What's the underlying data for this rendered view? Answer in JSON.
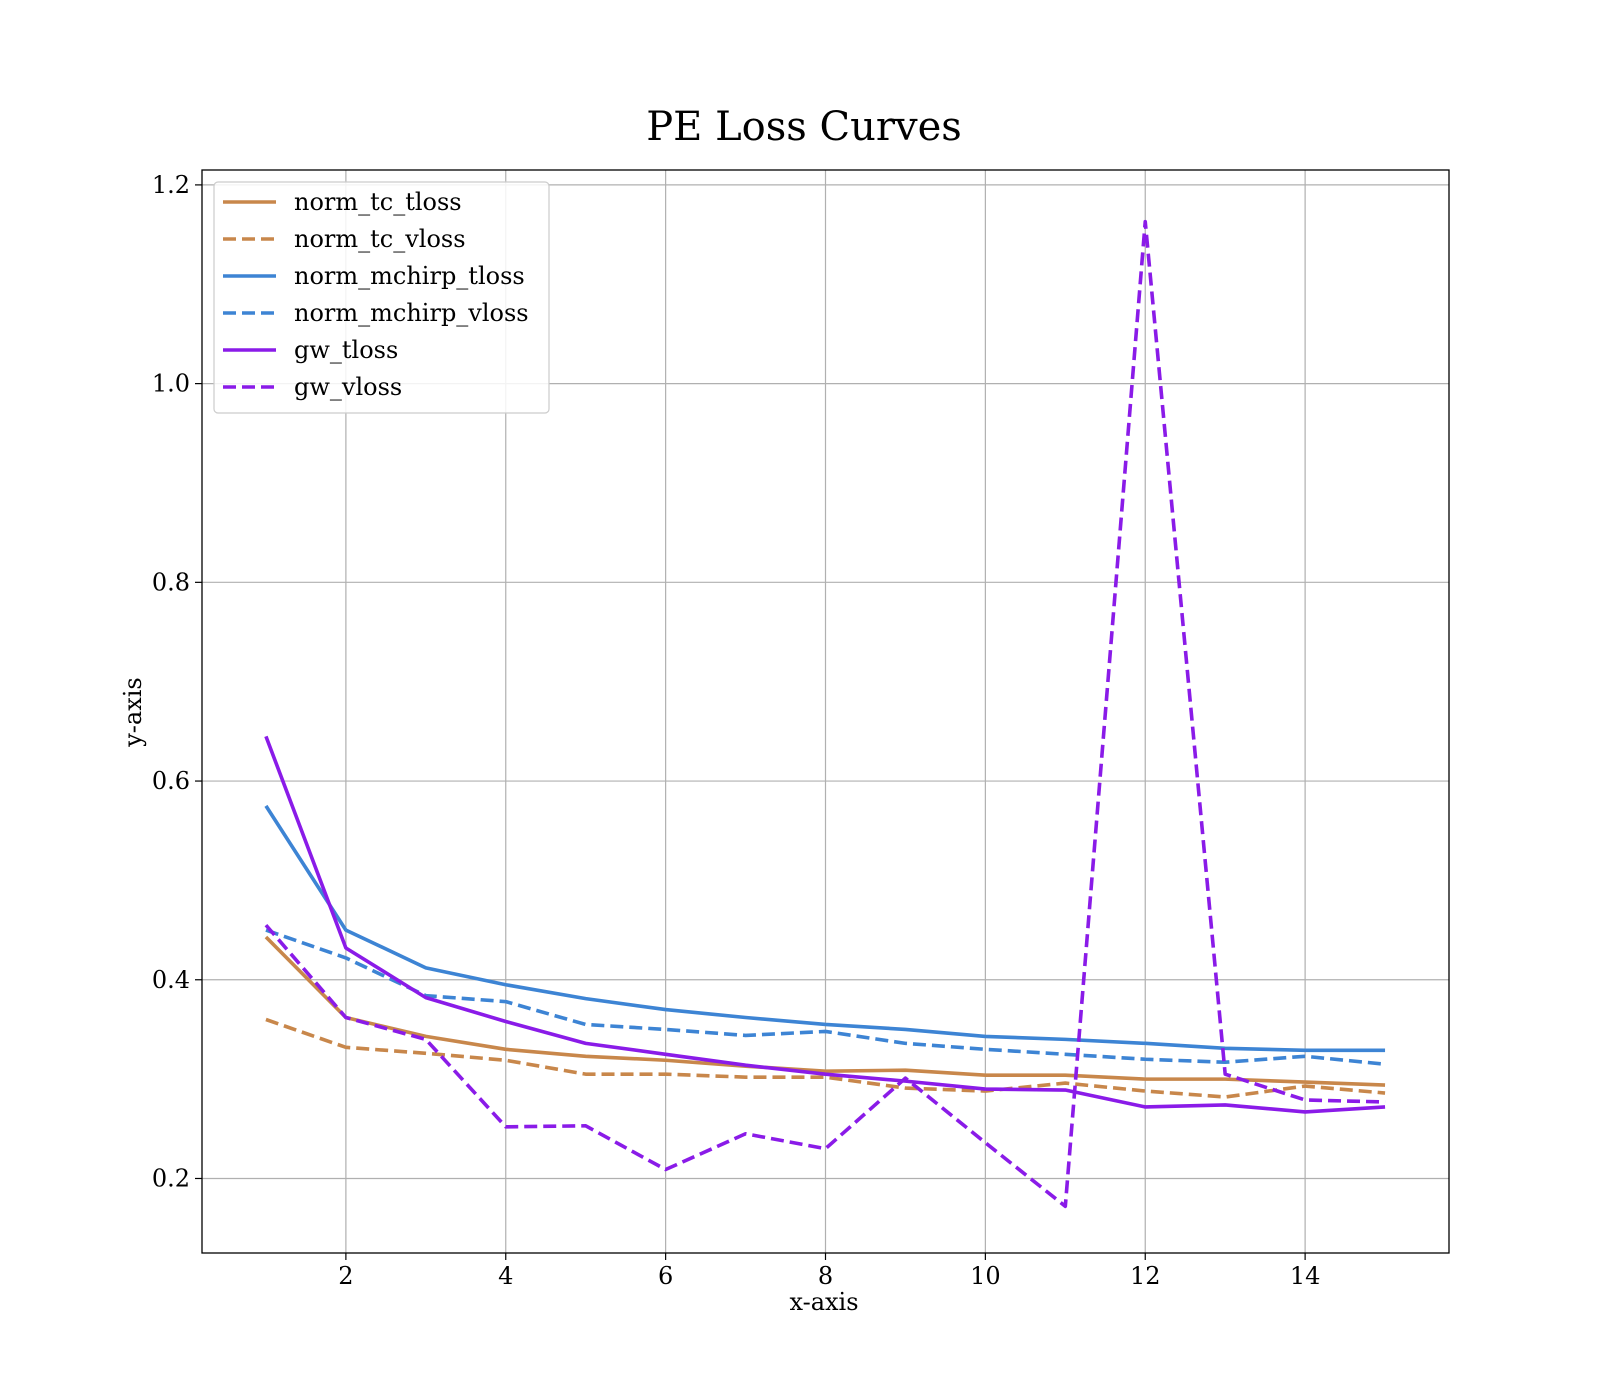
{
  "chart_data": {
    "type": "line",
    "title": "PE Loss Curves",
    "xlabel": "x-axis",
    "ylabel": "y-axis",
    "xlim": [
      0.2,
      15.8
    ],
    "ylim": [
      0.125,
      1.215
    ],
    "xticks": [
      2,
      4,
      6,
      8,
      10,
      12,
      14
    ],
    "yticks": [
      0.2,
      0.4,
      0.6,
      0.8,
      1.0,
      1.2
    ],
    "grid": true,
    "legend_position": "top-left",
    "x": [
      1,
      2,
      3,
      4,
      5,
      6,
      7,
      8,
      9,
      10,
      11,
      12,
      13,
      14,
      15
    ],
    "series": [
      {
        "name": "norm_tc_tloss",
        "color": "#c8874b",
        "style": "solid",
        "values": [
          0.443,
          0.362,
          0.343,
          0.33,
          0.323,
          0.319,
          0.313,
          0.308,
          0.309,
          0.304,
          0.304,
          0.3,
          0.3,
          0.297,
          0.294
        ]
      },
      {
        "name": "norm_tc_vloss",
        "color": "#c8874b",
        "style": "dashed",
        "values": [
          0.36,
          0.332,
          0.326,
          0.319,
          0.305,
          0.305,
          0.302,
          0.302,
          0.291,
          0.288,
          0.296,
          0.288,
          0.282,
          0.293,
          0.286
        ]
      },
      {
        "name": "norm_mchirp_tloss",
        "color": "#3d84d4",
        "style": "solid",
        "values": [
          0.575,
          0.45,
          0.412,
          0.395,
          0.381,
          0.37,
          0.362,
          0.355,
          0.35,
          0.343,
          0.34,
          0.336,
          0.331,
          0.329,
          0.329
        ]
      },
      {
        "name": "norm_mchirp_vloss",
        "color": "#3d84d4",
        "style": "dashed",
        "values": [
          0.45,
          0.422,
          0.384,
          0.378,
          0.355,
          0.35,
          0.344,
          0.348,
          0.336,
          0.33,
          0.325,
          0.32,
          0.317,
          0.323,
          0.315
        ]
      },
      {
        "name": "gw_tloss",
        "color": "#8a1be8",
        "style": "solid",
        "values": [
          0.645,
          0.432,
          0.382,
          0.358,
          0.336,
          0.325,
          0.314,
          0.305,
          0.298,
          0.29,
          0.289,
          0.272,
          0.274,
          0.267,
          0.272
        ]
      },
      {
        "name": "gw_vloss",
        "color": "#8a1be8",
        "style": "dashed",
        "values": [
          0.455,
          0.362,
          0.34,
          0.252,
          0.253,
          0.209,
          0.245,
          0.23,
          0.301,
          0.236,
          0.172,
          1.163,
          0.305,
          0.279,
          0.277
        ]
      }
    ]
  }
}
